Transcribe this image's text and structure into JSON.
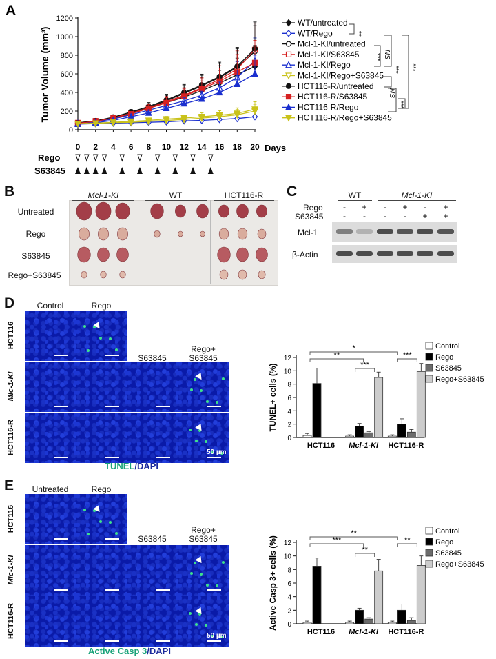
{
  "panel_letters": {
    "a": "A",
    "b": "B",
    "c": "C",
    "d": "D",
    "e": "E"
  },
  "panelA": {
    "ylabel": "Tumor Volume (mm³)",
    "xlabel": "Days",
    "rego_label": "Rego",
    "s63845_label": "S63845",
    "sig": {
      "s1": "**",
      "s2": "***",
      "s3": "NS",
      "s4": "***",
      "s5": "***",
      "s6": "NS",
      "s7": "***"
    }
  },
  "chart_data": [
    {
      "type": "line",
      "title": "",
      "xlabel": "Days",
      "ylabel": "Tumor Volume (mm³)",
      "xlim": [
        0,
        20
      ],
      "ylim": [
        0,
        1200
      ],
      "x_ticks": [
        0,
        2,
        4,
        6,
        8,
        10,
        12,
        14,
        16,
        18,
        20
      ],
      "y_ticks": [
        0,
        200,
        400,
        600,
        800,
        1000,
        1200
      ],
      "rego_days": [
        0,
        1,
        2,
        3,
        5,
        7,
        9,
        11,
        13,
        15
      ],
      "s63845_days": [
        0,
        1,
        2,
        3,
        5,
        7,
        9,
        11,
        13,
        15
      ],
      "series": [
        {
          "name": "WT/untreated",
          "color": "#111111",
          "marker": "diamond",
          "fill": true,
          "x": [
            0,
            2,
            4,
            6,
            8,
            10,
            12,
            14,
            16,
            18,
            20
          ],
          "y": [
            70,
            85,
            120,
            170,
            230,
            290,
            350,
            420,
            500,
            590,
            680
          ]
        },
        {
          "name": "WT/Rego",
          "color": "#1a2fcf",
          "marker": "diamond",
          "fill": false,
          "x": [
            0,
            2,
            4,
            6,
            8,
            10,
            12,
            14,
            16,
            18,
            20
          ],
          "y": [
            60,
            65,
            70,
            75,
            80,
            85,
            95,
            100,
            110,
            120,
            140
          ]
        },
        {
          "name": "Mcl-1-KI/untreated",
          "color": "#111111",
          "marker": "circle",
          "fill": false,
          "x": [
            0,
            2,
            4,
            6,
            8,
            10,
            12,
            14,
            16,
            18,
            20
          ],
          "y": [
            70,
            90,
            130,
            180,
            240,
            310,
            390,
            470,
            560,
            670,
            840
          ]
        },
        {
          "name": "Mcl-1-KI/S63845",
          "color": "#d62020",
          "marker": "square",
          "fill": false,
          "x": [
            0,
            2,
            4,
            6,
            8,
            10,
            12,
            14,
            16,
            18,
            20
          ],
          "y": [
            75,
            95,
            130,
            175,
            235,
            300,
            370,
            450,
            540,
            650,
            860
          ]
        },
        {
          "name": "Mcl-1-KI/Rego",
          "color": "#1a2fcf",
          "marker": "triangle",
          "fill": false,
          "x": [
            0,
            2,
            4,
            6,
            8,
            10,
            12,
            14,
            16,
            18,
            20
          ],
          "y": [
            70,
            85,
            115,
            160,
            210,
            260,
            310,
            370,
            450,
            560,
            740
          ]
        },
        {
          "name": "Mcl-1-KI/Rego+S63845",
          "color": "#c9c21a",
          "marker": "tri-down",
          "fill": false,
          "x": [
            0,
            2,
            4,
            6,
            8,
            10,
            12,
            14,
            16,
            18,
            20
          ],
          "y": [
            65,
            70,
            75,
            80,
            90,
            100,
            110,
            125,
            140,
            160,
            200
          ]
        },
        {
          "name": "HCT116-R/untreated",
          "color": "#111111",
          "marker": "circle",
          "fill": true,
          "x": [
            0,
            2,
            4,
            6,
            8,
            10,
            12,
            14,
            16,
            18,
            20
          ],
          "y": [
            75,
            95,
            135,
            190,
            250,
            320,
            400,
            480,
            570,
            680,
            870
          ]
        },
        {
          "name": "HCT116-R/S63845",
          "color": "#d62020",
          "marker": "square",
          "fill": true,
          "x": [
            0,
            2,
            4,
            6,
            8,
            10,
            12,
            14,
            16,
            18,
            20
          ],
          "y": [
            70,
            90,
            125,
            170,
            230,
            290,
            360,
            440,
            520,
            620,
            720
          ]
        },
        {
          "name": "HCT116-R/Rego",
          "color": "#1a2fcf",
          "marker": "triangle",
          "fill": true,
          "x": [
            0,
            2,
            4,
            6,
            8,
            10,
            12,
            14,
            16,
            18,
            20
          ],
          "y": [
            60,
            75,
            100,
            140,
            180,
            230,
            280,
            330,
            400,
            490,
            600
          ]
        },
        {
          "name": "HCT116-R/Rego+S63845",
          "color": "#c9c21a",
          "marker": "tri-down",
          "fill": true,
          "x": [
            0,
            2,
            4,
            6,
            8,
            10,
            12,
            14,
            16,
            18,
            20
          ],
          "y": [
            65,
            70,
            80,
            90,
            100,
            115,
            125,
            140,
            155,
            175,
            220
          ]
        }
      ]
    },
    {
      "type": "bar",
      "title": "",
      "ylabel": "TUNEL+ cells (%)",
      "ylim": [
        0,
        12
      ],
      "y_ticks": [
        0,
        2,
        4,
        6,
        8,
        10,
        12
      ],
      "categories": [
        "HCT116",
        "Mcl-1-KI",
        "HCT116-R"
      ],
      "series": [
        {
          "name": "Control",
          "color": "#ffffff",
          "values": [
            0.3,
            0.2,
            0.2
          ],
          "errors": [
            0.3,
            0.2,
            0.2
          ]
        },
        {
          "name": "Rego",
          "color": "#000000",
          "values": [
            8.1,
            1.7,
            2.0
          ],
          "errors": [
            2.3,
            0.4,
            0.8
          ]
        },
        {
          "name": "S63845",
          "color": "#6b6b6b",
          "values": [
            null,
            0.7,
            0.8
          ],
          "errors": [
            null,
            0.2,
            0.4
          ]
        },
        {
          "name": "Rego+S63845",
          "color": "#cccccc",
          "values": [
            null,
            9.0,
            9.9
          ],
          "errors": [
            null,
            0.8,
            1.2
          ]
        }
      ],
      "significance": [
        "**",
        "***",
        "*",
        "***"
      ]
    },
    {
      "type": "bar",
      "title": "",
      "ylabel": "Active Casp 3+ cells (%)",
      "ylim": [
        0,
        12
      ],
      "y_ticks": [
        0,
        2,
        4,
        6,
        8,
        10,
        12
      ],
      "categories": [
        "HCT116",
        "Mcl-1-KI",
        "HCT116-R"
      ],
      "series": [
        {
          "name": "Control",
          "color": "#ffffff",
          "values": [
            0.2,
            0.2,
            0.2
          ],
          "errors": [
            0.2,
            0.2,
            0.2
          ]
        },
        {
          "name": "Rego",
          "color": "#000000",
          "values": [
            8.5,
            2.0,
            2.0
          ],
          "errors": [
            1.2,
            0.3,
            0.9
          ]
        },
        {
          "name": "S63845",
          "color": "#6b6b6b",
          "values": [
            null,
            0.7,
            0.5
          ],
          "errors": [
            null,
            0.2,
            0.4
          ]
        },
        {
          "name": "Rego+S63845",
          "color": "#cccccc",
          "values": [
            null,
            7.8,
            8.6
          ],
          "errors": [
            null,
            1.7,
            1.4
          ]
        }
      ],
      "significance": [
        "***",
        "**",
        "**",
        "**"
      ]
    }
  ],
  "panelB": {
    "headers": [
      "Mcl-1-KI",
      "WT",
      "HCT116-R"
    ],
    "rows": [
      "Untreated",
      "Rego",
      "S63845",
      "Rego+S63845"
    ]
  },
  "panelC": {
    "header_wt": "WT",
    "header_ki": "Mcl-1-KI",
    "row_rego": "Rego",
    "row_s": "S63845",
    "rego_signs": [
      "-",
      "+",
      "-",
      "+",
      "-",
      "+"
    ],
    "s_signs": [
      "-",
      "-",
      "-",
      "-",
      "+",
      "+"
    ],
    "band1": "Mcl-1",
    "band2": "β-Actin"
  },
  "panelD": {
    "col_control": "Control",
    "col_rego": "Rego",
    "col_s": "S63845",
    "col_combo_1": "Rego+",
    "col_combo_2": "S63845",
    "rows": [
      "HCT116",
      "Mlc-1-KI",
      "HCT116-R"
    ],
    "scale": "50 µm",
    "stain_a": "TUNEL",
    "stain_b": "/DAPI"
  },
  "panelE": {
    "col_control": "Untreated",
    "col_rego": "Rego",
    "col_s": "S63845",
    "col_combo_1": "Rego+",
    "col_combo_2": "S63845",
    "rows": [
      "HCT116",
      "Mlc-1-KI",
      "HCT116-R"
    ],
    "scale": "50 µm",
    "stain_a": "Active Casp 3",
    "stain_b": "/DAPI"
  },
  "colors": {
    "tunel_green": "#1aa37a",
    "dapi_blue": "#1c2a9c",
    "tissue_blue": "#0a1aa8"
  }
}
